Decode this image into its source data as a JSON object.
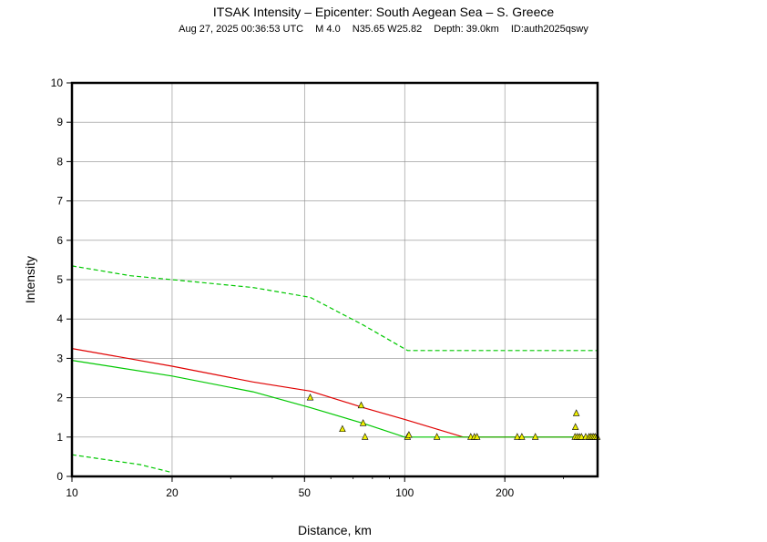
{
  "header": {
    "title": "ITSAK Intensity –  Epicenter: South Aegean Sea – S. Greece",
    "datetime": "Aug 27, 2025 00:36:53 UTC",
    "magnitude": "M 4.0",
    "location": "N35.65 W25.82",
    "depth": "Depth: 39.0km",
    "event_id": "ID:auth2025qswy"
  },
  "chart_data": {
    "type": "scatter",
    "title": "ITSAK Intensity –  Epicenter: South Aegean Sea – S. Greece",
    "xlabel": "Distance, km",
    "ylabel": "Intensity",
    "x_scale": "log",
    "xlim": [
      10,
      380
    ],
    "ylim": [
      0,
      10
    ],
    "x_ticks": [
      10,
      20,
      50,
      100,
      200
    ],
    "y_ticks": [
      0,
      1,
      2,
      3,
      4,
      5,
      6,
      7,
      8,
      9,
      10
    ],
    "grid": true,
    "series": [
      {
        "kind": "points",
        "marker": "triangle",
        "color": "#f0f000",
        "x": [
          52,
          65,
          74,
          75,
          76,
          102,
          103,
          125,
          158,
          162,
          165,
          218,
          225,
          247,
          325,
          326,
          328,
          330,
          335,
          340,
          350,
          358,
          362,
          366,
          370,
          374,
          379
        ],
        "y": [
          2.0,
          1.2,
          1.8,
          1.35,
          1.0,
          1.0,
          1.05,
          1.0,
          1.0,
          1.0,
          1.0,
          1.0,
          1.0,
          1.0,
          1.0,
          1.25,
          1.6,
          1.0,
          1.0,
          1.0,
          1.0,
          1.0,
          1.0,
          1.0,
          1.0,
          1.0,
          1.0
        ]
      },
      {
        "kind": "line",
        "color": "#e00000",
        "dashed": false,
        "x": [
          10,
          20,
          35,
          52,
          75,
          100,
          150,
          380
        ],
        "y": [
          3.25,
          2.8,
          2.4,
          2.17,
          1.75,
          1.45,
          1.0,
          1.0
        ]
      },
      {
        "kind": "line",
        "color": "#00c800",
        "dashed": false,
        "x": [
          10,
          20,
          35,
          52,
          75,
          100,
          380
        ],
        "y": [
          2.95,
          2.55,
          2.15,
          1.75,
          1.35,
          1.0,
          1.0
        ]
      },
      {
        "kind": "line",
        "color": "#00c800",
        "dashed": true,
        "x": [
          10,
          15,
          20,
          35,
          52,
          75,
          102,
          380
        ],
        "y": [
          5.35,
          5.1,
          5.0,
          4.8,
          4.55,
          3.85,
          3.2,
          3.2
        ]
      },
      {
        "kind": "line",
        "color": "#00c800",
        "dashed": true,
        "x": [
          10,
          16,
          20
        ],
        "y": [
          0.55,
          0.3,
          0.1
        ]
      }
    ]
  }
}
